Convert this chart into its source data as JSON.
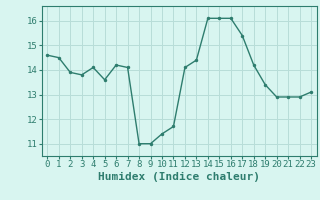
{
  "x": [
    0,
    1,
    2,
    3,
    4,
    5,
    6,
    7,
    8,
    9,
    10,
    11,
    12,
    13,
    14,
    15,
    16,
    17,
    18,
    19,
    20,
    21,
    22,
    23
  ],
  "y": [
    14.6,
    14.5,
    13.9,
    13.8,
    14.1,
    13.6,
    14.2,
    14.1,
    11.0,
    11.0,
    11.4,
    11.7,
    14.1,
    14.4,
    16.1,
    16.1,
    16.1,
    15.4,
    14.2,
    13.4,
    12.9,
    12.9,
    12.9,
    13.1
  ],
  "line_color": "#2e7d6e",
  "marker": "o",
  "marker_size": 2.5,
  "bg_color": "#d8f5f0",
  "grid_color": "#b8ddd8",
  "xlabel": "Humidex (Indice chaleur)",
  "ylim": [
    10.5,
    16.6
  ],
  "xlim": [
    -0.5,
    23.5
  ],
  "yticks": [
    11,
    12,
    13,
    14,
    15,
    16
  ],
  "xticks": [
    0,
    1,
    2,
    3,
    4,
    5,
    6,
    7,
    8,
    9,
    10,
    11,
    12,
    13,
    14,
    15,
    16,
    17,
    18,
    19,
    20,
    21,
    22,
    23
  ],
  "tick_fontsize": 6.5,
  "xlabel_fontsize": 8
}
